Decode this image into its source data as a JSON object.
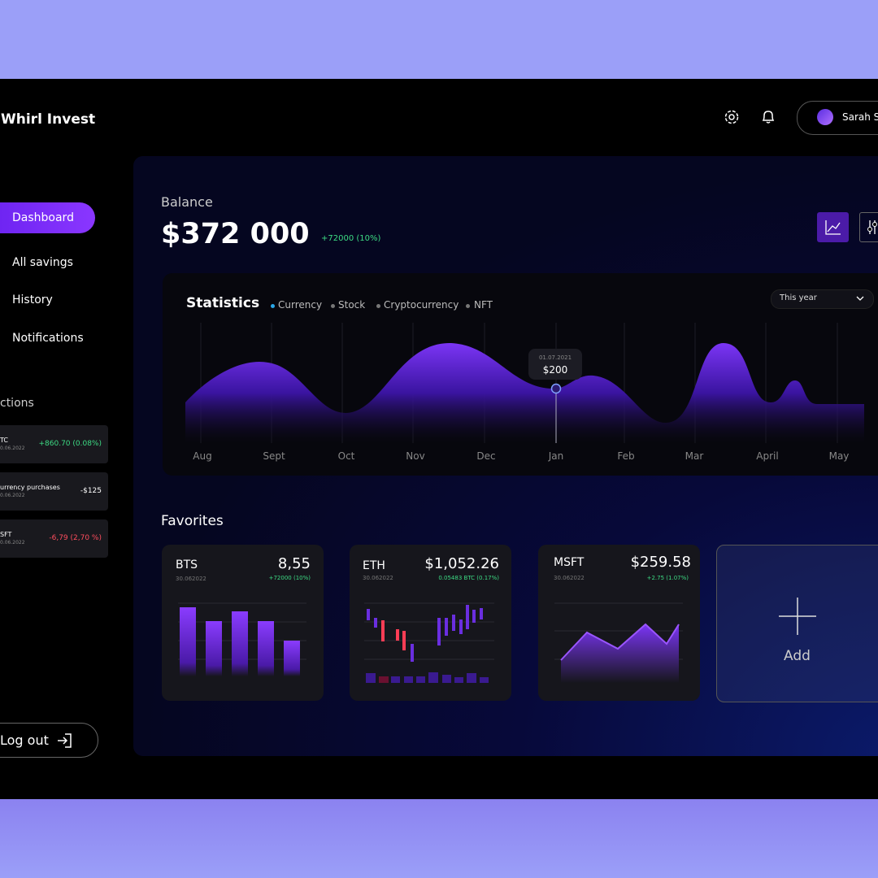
{
  "header": {
    "brand": "Whirl Invest",
    "user": "Sarah S"
  },
  "sidebar": {
    "nav": [
      "Dashboard",
      "All savings",
      "History",
      "Notifications"
    ],
    "section": "ctions",
    "transactions": [
      {
        "name": "TC",
        "date": "0.06.2022",
        "amount": "+860.70 (0.08%)"
      },
      {
        "name": "urrency purchases",
        "date": "0.06.2022",
        "amount": "-$125"
      },
      {
        "name": "SFT",
        "date": "0.06.2022",
        "amount": "-6,79 (2,70 %)"
      }
    ],
    "logout": "Log out"
  },
  "balance": {
    "label": "Balance",
    "amount": "$372 000",
    "change": "+72000 (10%)"
  },
  "statistics": {
    "title": "Statistics",
    "legend": [
      "Currency",
      "Stock",
      "Cryptocurrency",
      "NFT"
    ],
    "period": "This year",
    "tooltip": {
      "date": "01.07.2021",
      "value": "$200"
    },
    "months": [
      "Aug",
      "Sept",
      "Oct",
      "Nov",
      "Dec",
      "Jan",
      "Feb",
      "Mar",
      "April",
      "May"
    ]
  },
  "favorites": {
    "title": "Favorites",
    "cards": [
      {
        "name": "BTS",
        "date": "30.062022",
        "price": "8,55",
        "change": "+72000 (10%)"
      },
      {
        "name": "ETH",
        "date": "30.062022",
        "price": "$1,052.26",
        "change": "0.05483 BTC (0.17%)"
      },
      {
        "name": "MSFT",
        "date": "30.062022",
        "price": "$259.58",
        "change": "+2.75 (1.07%)"
      }
    ],
    "add": "Add"
  }
}
